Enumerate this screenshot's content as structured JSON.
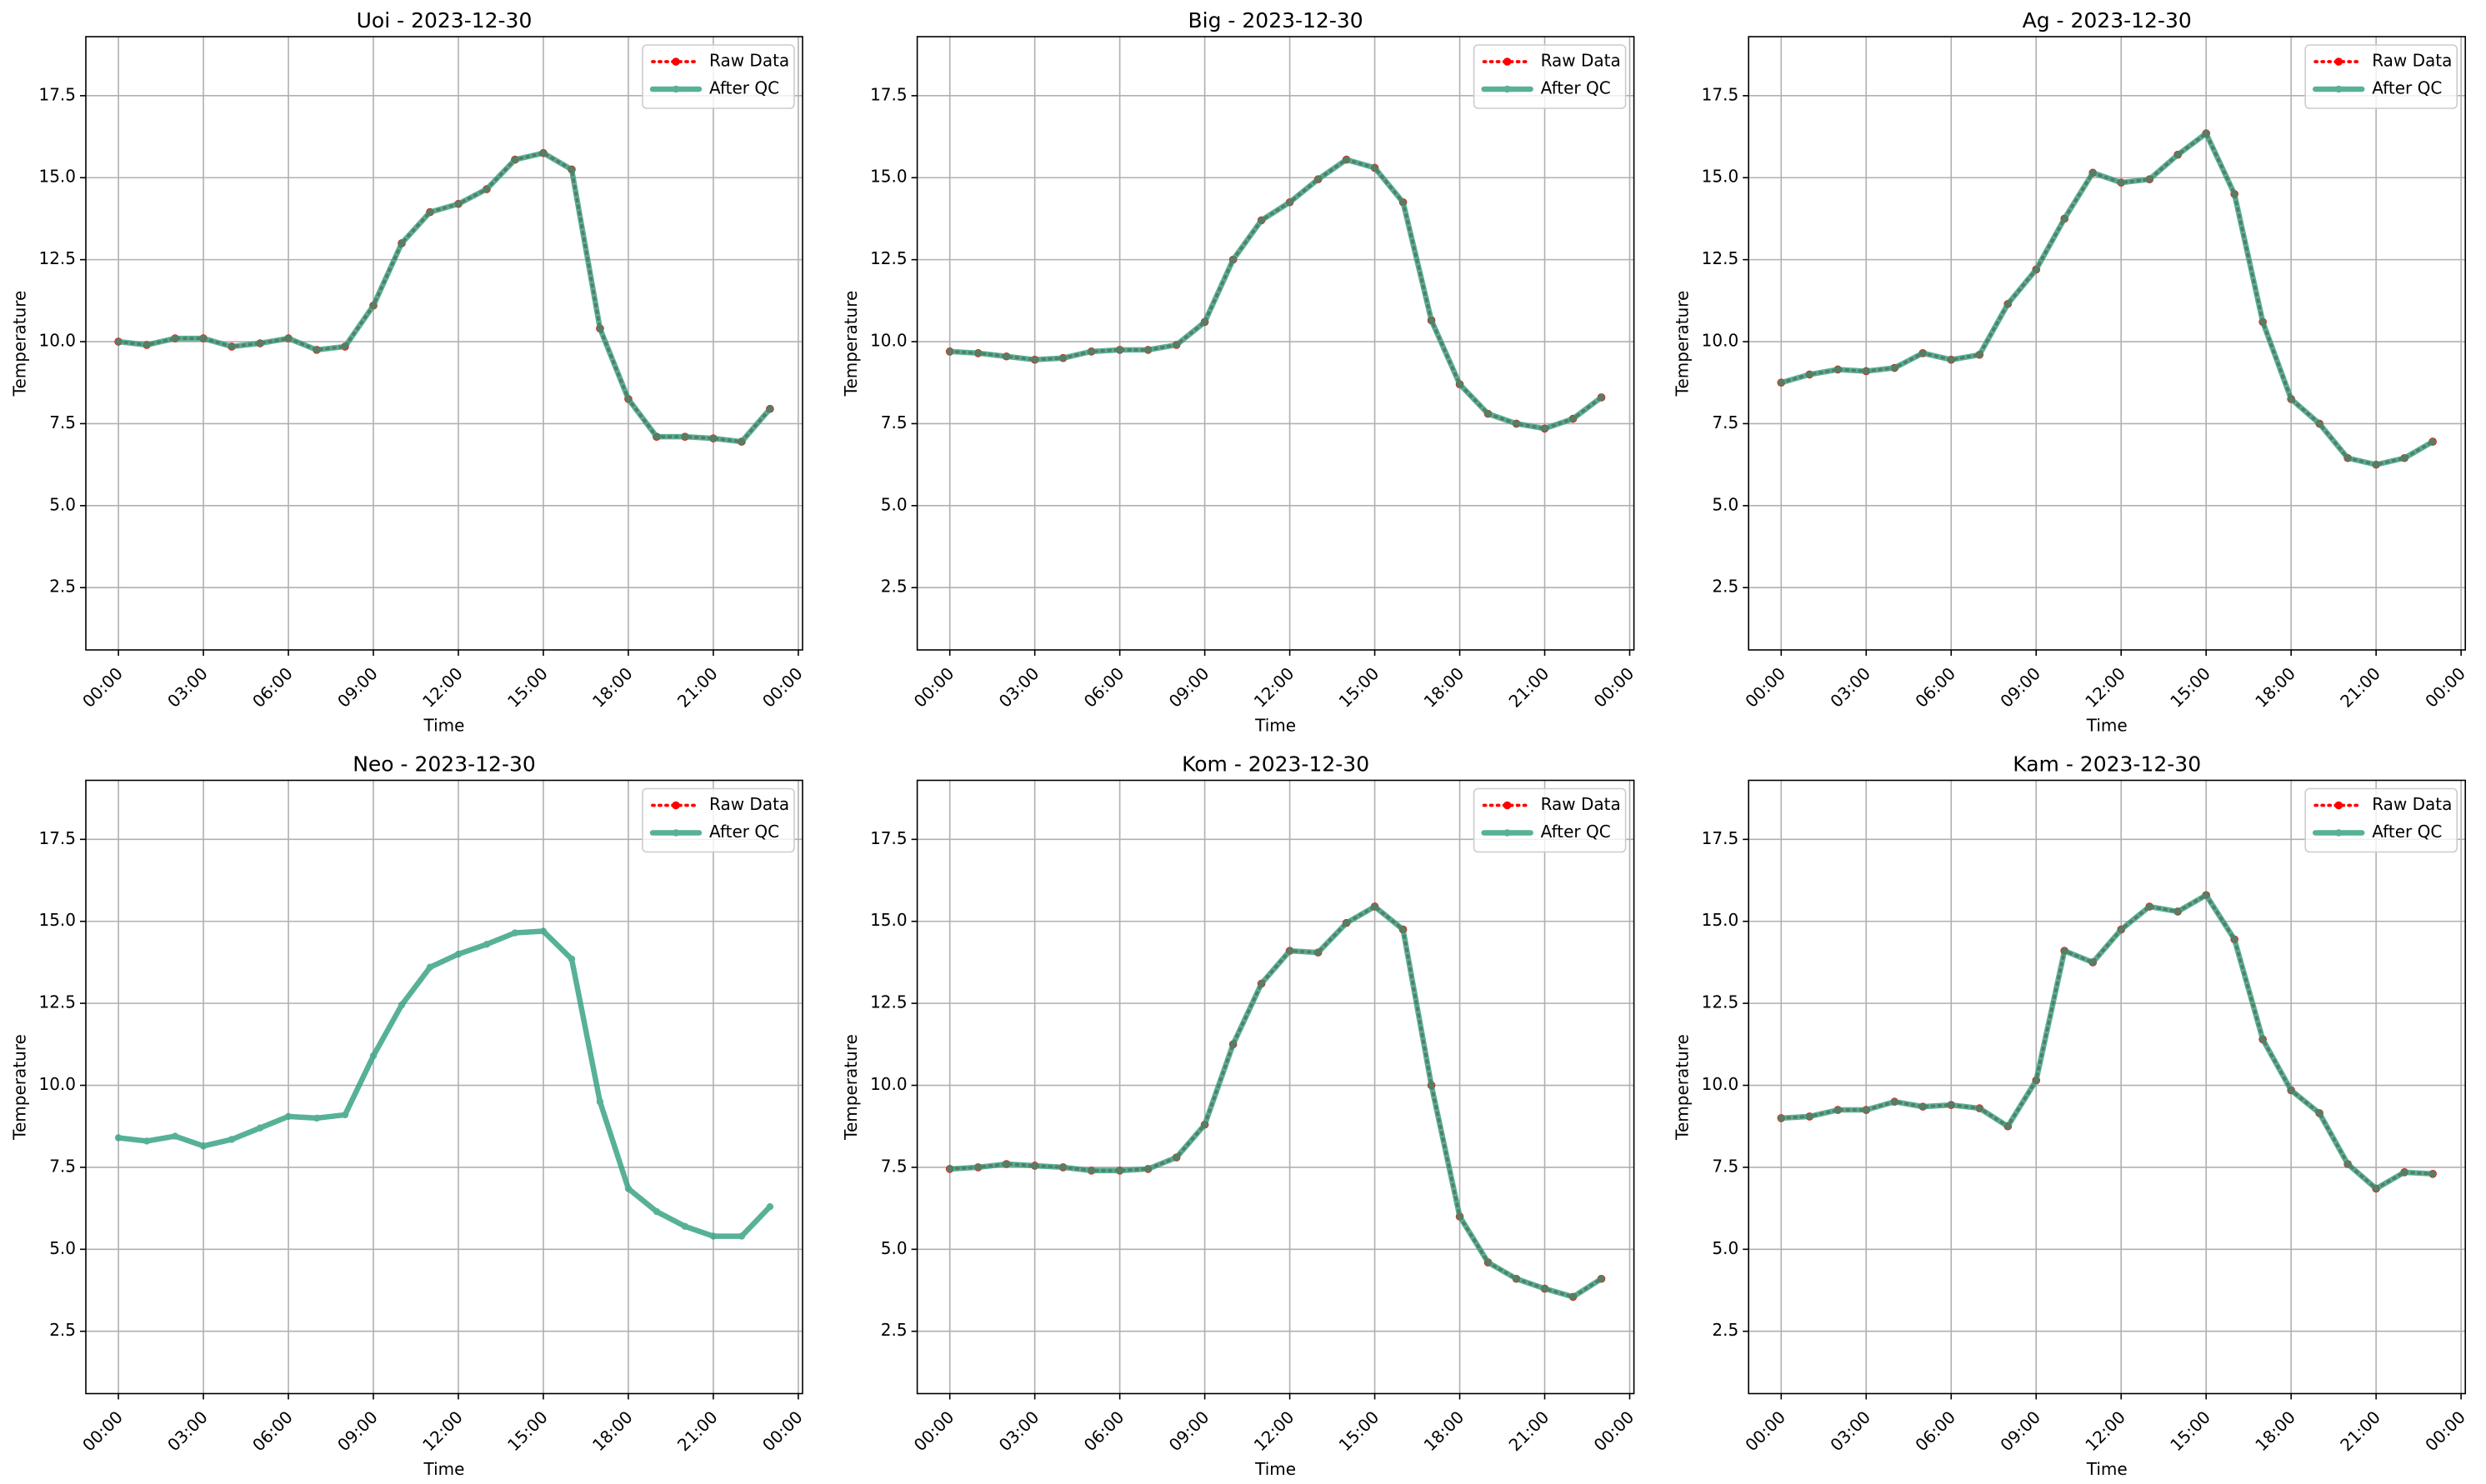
{
  "chart_data": [
    {
      "type": "line",
      "title": "Uoi - 2023-12-30",
      "xlabel": "Time",
      "ylabel": "Temperature",
      "x": [
        0,
        1,
        2,
        3,
        4,
        5,
        6,
        7,
        8,
        9,
        10,
        11,
        12,
        13,
        14,
        15,
        16,
        17,
        18,
        19,
        20,
        21,
        22,
        23
      ],
      "series": [
        {
          "name": "Raw Data",
          "color": "#ff0000",
          "values": [
            10.0,
            9.9,
            10.1,
            10.1,
            9.85,
            9.95,
            10.1,
            9.75,
            9.85,
            11.1,
            13.0,
            13.95,
            14.2,
            14.65,
            15.55,
            15.75,
            15.25,
            10.4,
            8.25,
            7.1,
            7.1,
            7.05,
            6.95,
            7.95
          ]
        },
        {
          "name": "After QC",
          "color": "#2e9e7e",
          "values": [
            10.0,
            9.9,
            10.1,
            10.1,
            9.85,
            9.95,
            10.1,
            9.75,
            9.85,
            11.1,
            13.0,
            13.95,
            14.2,
            14.65,
            15.55,
            15.75,
            15.25,
            10.4,
            8.25,
            7.1,
            7.1,
            7.05,
            6.95,
            7.95
          ]
        }
      ],
      "xlim": [
        -1.15,
        24.15
      ],
      "ylim": [
        0.6,
        19.3
      ],
      "xticks": [
        {
          "value": 0,
          "label": "00:00"
        },
        {
          "value": 3,
          "label": "03:00"
        },
        {
          "value": 6,
          "label": "06:00"
        },
        {
          "value": 9,
          "label": "09:00"
        },
        {
          "value": 12,
          "label": "12:00"
        },
        {
          "value": 15,
          "label": "15:00"
        },
        {
          "value": 18,
          "label": "18:00"
        },
        {
          "value": 21,
          "label": "21:00"
        },
        {
          "value": 24,
          "label": "00:00"
        }
      ],
      "yticks": [
        2.5,
        {
          "value": 5,
          "label": "5.0"
        },
        7.5,
        {
          "value": 10,
          "label": "10.0"
        },
        12.5,
        {
          "value": 15,
          "label": "15.0"
        },
        17.5
      ],
      "grid": true,
      "legend": "upper right"
    },
    {
      "type": "line",
      "title": "Big - 2023-12-30",
      "xlabel": "Time",
      "ylabel": "Temperature",
      "x": [
        0,
        1,
        2,
        3,
        4,
        5,
        6,
        7,
        8,
        9,
        10,
        11,
        12,
        13,
        14,
        15,
        16,
        17,
        18,
        19,
        20,
        21,
        22,
        23
      ],
      "series": [
        {
          "name": "Raw Data",
          "color": "#ff0000",
          "values": [
            9.7,
            9.65,
            9.55,
            9.45,
            9.5,
            9.7,
            9.75,
            9.75,
            9.9,
            10.6,
            12.5,
            13.7,
            14.25,
            14.95,
            15.55,
            15.3,
            14.25,
            10.65,
            8.7,
            7.8,
            7.5,
            7.35,
            7.65,
            8.3
          ]
        },
        {
          "name": "After QC",
          "color": "#2e9e7e",
          "values": [
            9.7,
            9.65,
            9.55,
            9.45,
            9.5,
            9.7,
            9.75,
            9.75,
            9.9,
            10.6,
            12.5,
            13.7,
            14.25,
            14.95,
            15.55,
            15.3,
            14.25,
            10.65,
            8.7,
            7.8,
            7.5,
            7.35,
            7.65,
            8.3
          ]
        }
      ],
      "xlim": [
        -1.15,
        24.15
      ],
      "ylim": [
        0.6,
        19.3
      ],
      "xticks": [
        {
          "value": 0,
          "label": "00:00"
        },
        {
          "value": 3,
          "label": "03:00"
        },
        {
          "value": 6,
          "label": "06:00"
        },
        {
          "value": 9,
          "label": "09:00"
        },
        {
          "value": 12,
          "label": "12:00"
        },
        {
          "value": 15,
          "label": "15:00"
        },
        {
          "value": 18,
          "label": "18:00"
        },
        {
          "value": 21,
          "label": "21:00"
        },
        {
          "value": 24,
          "label": "00:00"
        }
      ],
      "yticks": [
        2.5,
        {
          "value": 5,
          "label": "5.0"
        },
        7.5,
        {
          "value": 10,
          "label": "10.0"
        },
        12.5,
        {
          "value": 15,
          "label": "15.0"
        },
        17.5
      ],
      "grid": true,
      "legend": "upper right"
    },
    {
      "type": "line",
      "title": "Ag - 2023-12-30",
      "xlabel": "Time",
      "ylabel": "Temperature",
      "x": [
        0,
        1,
        2,
        3,
        4,
        5,
        6,
        7,
        8,
        9,
        10,
        11,
        12,
        13,
        14,
        15,
        16,
        17,
        18,
        19,
        20,
        21,
        22,
        23
      ],
      "series": [
        {
          "name": "Raw Data",
          "color": "#ff0000",
          "values": [
            8.75,
            9.0,
            9.15,
            9.1,
            9.2,
            9.65,
            9.45,
            9.6,
            11.15,
            12.2,
            13.75,
            15.15,
            14.85,
            14.95,
            15.7,
            16.35,
            14.5,
            10.6,
            8.25,
            7.5,
            6.45,
            6.25,
            6.45,
            6.95
          ]
        },
        {
          "name": "After QC",
          "color": "#2e9e7e",
          "values": [
            8.75,
            9.0,
            9.15,
            9.1,
            9.2,
            9.65,
            9.45,
            9.6,
            11.15,
            12.2,
            13.75,
            15.15,
            14.85,
            14.95,
            15.7,
            16.35,
            14.5,
            10.6,
            8.25,
            7.5,
            6.45,
            6.25,
            6.45,
            6.95
          ]
        }
      ],
      "xlim": [
        -1.15,
        24.15
      ],
      "ylim": [
        0.6,
        19.3
      ],
      "xticks": [
        {
          "value": 0,
          "label": "00:00"
        },
        {
          "value": 3,
          "label": "03:00"
        },
        {
          "value": 6,
          "label": "06:00"
        },
        {
          "value": 9,
          "label": "09:00"
        },
        {
          "value": 12,
          "label": "12:00"
        },
        {
          "value": 15,
          "label": "15:00"
        },
        {
          "value": 18,
          "label": "18:00"
        },
        {
          "value": 21,
          "label": "21:00"
        },
        {
          "value": 24,
          "label": "00:00"
        }
      ],
      "yticks": [
        2.5,
        {
          "value": 5,
          "label": "5.0"
        },
        7.5,
        {
          "value": 10,
          "label": "10.0"
        },
        12.5,
        {
          "value": 15,
          "label": "15.0"
        },
        17.5
      ],
      "grid": true,
      "legend": "upper right"
    },
    {
      "type": "line",
      "title": "Neo - 2023-12-30",
      "xlabel": "Time",
      "ylabel": "Temperature",
      "x": [
        0,
        1,
        2,
        3,
        4,
        5,
        6,
        7,
        8,
        9,
        10,
        11,
        12,
        13,
        14,
        15,
        16,
        17,
        18,
        19,
        20,
        21,
        22,
        23
      ],
      "series": [
        {
          "name": "Raw Data",
          "color": "#ff0000",
          "values": [
            null,
            null,
            null,
            null,
            null,
            null,
            null,
            null,
            null,
            null,
            null,
            null,
            null,
            null,
            null,
            null,
            null,
            null,
            null,
            null,
            null,
            null,
            null,
            null
          ]
        },
        {
          "name": "After QC",
          "color": "#2e9e7e",
          "values": [
            8.4,
            8.3,
            8.45,
            8.15,
            8.35,
            8.7,
            9.05,
            9.0,
            9.1,
            10.9,
            12.45,
            13.6,
            14.0,
            14.3,
            14.65,
            14.7,
            13.85,
            9.5,
            6.85,
            6.15,
            5.7,
            5.4,
            5.4,
            6.3
          ]
        }
      ],
      "xlim": [
        -1.15,
        24.15
      ],
      "ylim": [
        0.6,
        19.3
      ],
      "xticks": [
        {
          "value": 0,
          "label": "00:00"
        },
        {
          "value": 3,
          "label": "03:00"
        },
        {
          "value": 6,
          "label": "06:00"
        },
        {
          "value": 9,
          "label": "09:00"
        },
        {
          "value": 12,
          "label": "12:00"
        },
        {
          "value": 15,
          "label": "15:00"
        },
        {
          "value": 18,
          "label": "18:00"
        },
        {
          "value": 21,
          "label": "21:00"
        },
        {
          "value": 24,
          "label": "00:00"
        }
      ],
      "yticks": [
        2.5,
        {
          "value": 5,
          "label": "5.0"
        },
        7.5,
        {
          "value": 10,
          "label": "10.0"
        },
        12.5,
        {
          "value": 15,
          "label": "15.0"
        },
        17.5
      ],
      "grid": true,
      "legend": "upper right"
    },
    {
      "type": "line",
      "title": "Kom - 2023-12-30",
      "xlabel": "Time",
      "ylabel": "Temperature",
      "x": [
        0,
        1,
        2,
        3,
        4,
        5,
        6,
        7,
        8,
        9,
        10,
        11,
        12,
        13,
        14,
        15,
        16,
        17,
        18,
        19,
        20,
        21,
        22,
        23
      ],
      "series": [
        {
          "name": "Raw Data",
          "color": "#ff0000",
          "values": [
            7.45,
            7.5,
            7.6,
            7.55,
            7.5,
            7.4,
            7.4,
            7.45,
            7.8,
            8.8,
            11.25,
            13.1,
            14.1,
            14.05,
            14.95,
            15.45,
            14.75,
            10.0,
            6.0,
            4.6,
            4.1,
            3.8,
            3.55,
            4.1
          ]
        },
        {
          "name": "After QC",
          "color": "#2e9e7e",
          "values": [
            7.45,
            7.5,
            7.6,
            7.55,
            7.5,
            7.4,
            7.4,
            7.45,
            7.8,
            8.8,
            11.25,
            13.1,
            14.1,
            14.05,
            14.95,
            15.45,
            14.75,
            10.0,
            6.0,
            4.6,
            4.1,
            3.8,
            3.55,
            4.1
          ]
        }
      ],
      "xlim": [
        -1.15,
        24.15
      ],
      "ylim": [
        0.6,
        19.3
      ],
      "xticks": [
        {
          "value": 0,
          "label": "00:00"
        },
        {
          "value": 3,
          "label": "03:00"
        },
        {
          "value": 6,
          "label": "06:00"
        },
        {
          "value": 9,
          "label": "09:00"
        },
        {
          "value": 12,
          "label": "12:00"
        },
        {
          "value": 15,
          "label": "15:00"
        },
        {
          "value": 18,
          "label": "18:00"
        },
        {
          "value": 21,
          "label": "21:00"
        },
        {
          "value": 24,
          "label": "00:00"
        }
      ],
      "yticks": [
        2.5,
        {
          "value": 5,
          "label": "5.0"
        },
        7.5,
        {
          "value": 10,
          "label": "10.0"
        },
        12.5,
        {
          "value": 15,
          "label": "15.0"
        },
        17.5
      ],
      "grid": true,
      "legend": "upper right"
    },
    {
      "type": "line",
      "title": "Kam - 2023-12-30",
      "xlabel": "Time",
      "ylabel": "Temperature",
      "x": [
        0,
        1,
        2,
        3,
        4,
        5,
        6,
        7,
        8,
        9,
        10,
        11,
        12,
        13,
        14,
        15,
        16,
        17,
        18,
        19,
        20,
        21,
        22,
        23
      ],
      "series": [
        {
          "name": "Raw Data",
          "color": "#ff0000",
          "values": [
            9.0,
            9.05,
            9.25,
            9.25,
            9.5,
            9.35,
            9.4,
            9.3,
            8.75,
            10.15,
            14.1,
            13.75,
            14.75,
            15.45,
            15.3,
            15.8,
            14.45,
            11.4,
            9.85,
            9.15,
            7.6,
            6.85,
            7.35,
            7.3
          ]
        },
        {
          "name": "After QC",
          "color": "#2e9e7e",
          "values": [
            9.0,
            9.05,
            9.25,
            9.25,
            9.5,
            9.35,
            9.4,
            9.3,
            8.75,
            10.15,
            14.1,
            13.75,
            14.75,
            15.45,
            15.3,
            15.8,
            14.45,
            11.4,
            9.85,
            9.15,
            7.6,
            6.85,
            7.35,
            7.3
          ]
        }
      ],
      "xlim": [
        -1.15,
        24.15
      ],
      "ylim": [
        0.6,
        19.3
      ],
      "xticks": [
        {
          "value": 0,
          "label": "00:00"
        },
        {
          "value": 3,
          "label": "03:00"
        },
        {
          "value": 6,
          "label": "06:00"
        },
        {
          "value": 9,
          "label": "09:00"
        },
        {
          "value": 12,
          "label": "12:00"
        },
        {
          "value": 15,
          "label": "15:00"
        },
        {
          "value": 18,
          "label": "18:00"
        },
        {
          "value": 21,
          "label": "21:00"
        },
        {
          "value": 24,
          "label": "00:00"
        }
      ],
      "yticks": [
        2.5,
        {
          "value": 5,
          "label": "5.0"
        },
        7.5,
        {
          "value": 10,
          "label": "10.0"
        },
        12.5,
        {
          "value": 15,
          "label": "15.0"
        },
        17.5
      ],
      "grid": true,
      "legend": "upper right"
    }
  ]
}
